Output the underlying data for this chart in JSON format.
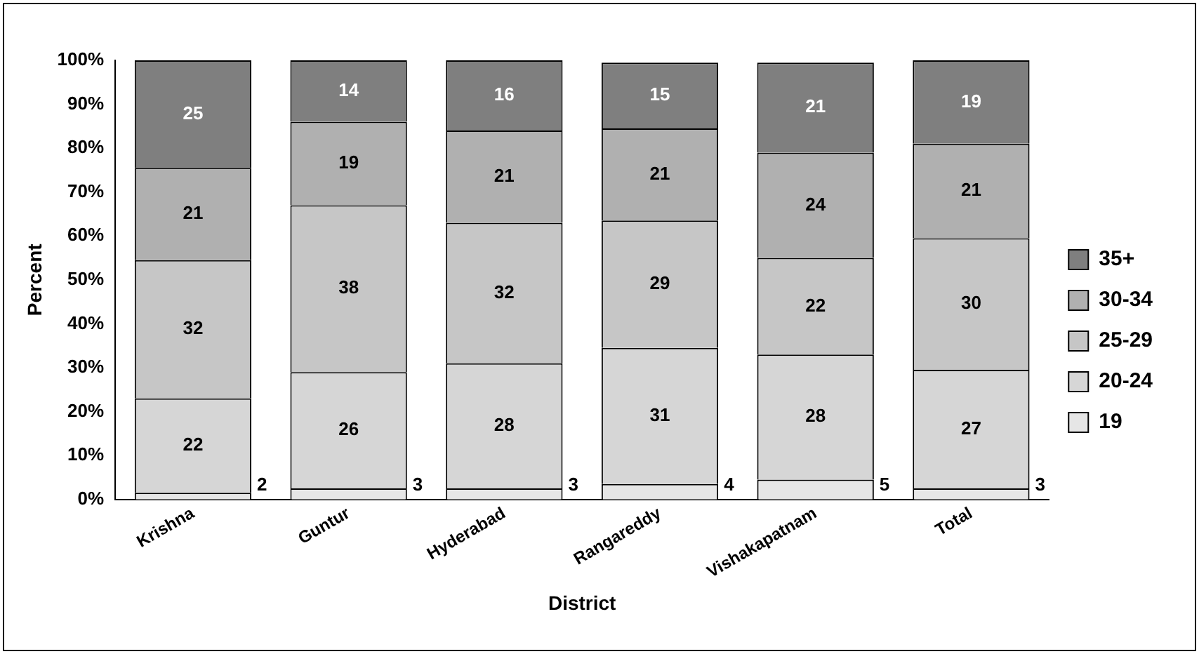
{
  "chart_data": {
    "type": "bar",
    "stacked": true,
    "xlabel": "District",
    "ylabel": "Percent",
    "categories": [
      "Krishna",
      "Guntur",
      "Hyderabad",
      "Rangareddy",
      "Vishakapatnam",
      "Total"
    ],
    "ylim": [
      0,
      100
    ],
    "yticks": [
      {
        "value": 0,
        "label": "0%"
      },
      {
        "value": 10,
        "label": "10%"
      },
      {
        "value": 20,
        "label": "20%"
      },
      {
        "value": 30,
        "label": "30%"
      },
      {
        "value": 40,
        "label": "40%"
      },
      {
        "value": 50,
        "label": "50%"
      },
      {
        "value": 60,
        "label": "60%"
      },
      {
        "value": 70,
        "label": "70%"
      },
      {
        "value": 80,
        "label": "80%"
      },
      {
        "value": 90,
        "label": "90%"
      },
      {
        "value": 100,
        "label": "100%"
      }
    ],
    "grid": false,
    "legend": "right",
    "series": [
      {
        "name": "19",
        "color": "#e6e6e6",
        "values": [
          1.5,
          2.5,
          2.5,
          3.5,
          4.5,
          2.5
        ],
        "value_labels": [
          "2",
          "3",
          "3",
          "4",
          "5",
          "3"
        ]
      },
      {
        "name": "20-24",
        "color": "#d6d6d6",
        "values": [
          21.5,
          26.5,
          28.5,
          31,
          28.5,
          27
        ],
        "value_labels": [
          "22",
          "26",
          "28",
          "31",
          "28",
          "27"
        ]
      },
      {
        "name": "25-29",
        "color": "#c6c6c6",
        "values": [
          31.5,
          38,
          32,
          29,
          22,
          30
        ],
        "value_labels": [
          "32",
          "38",
          "32",
          "29",
          "22",
          "30"
        ]
      },
      {
        "name": "30-34",
        "color": "#b0b0b0",
        "values": [
          21,
          19,
          21,
          21,
          24,
          21.5
        ],
        "value_labels": [
          "21",
          "19",
          "21",
          "21",
          "24",
          "21"
        ]
      },
      {
        "name": "35+",
        "color": "#7f7f7f",
        "values": [
          24.5,
          14,
          16,
          15,
          20.5,
          19
        ],
        "value_labels": [
          "25",
          "14",
          "16",
          "15",
          "21",
          "19"
        ]
      }
    ]
  }
}
